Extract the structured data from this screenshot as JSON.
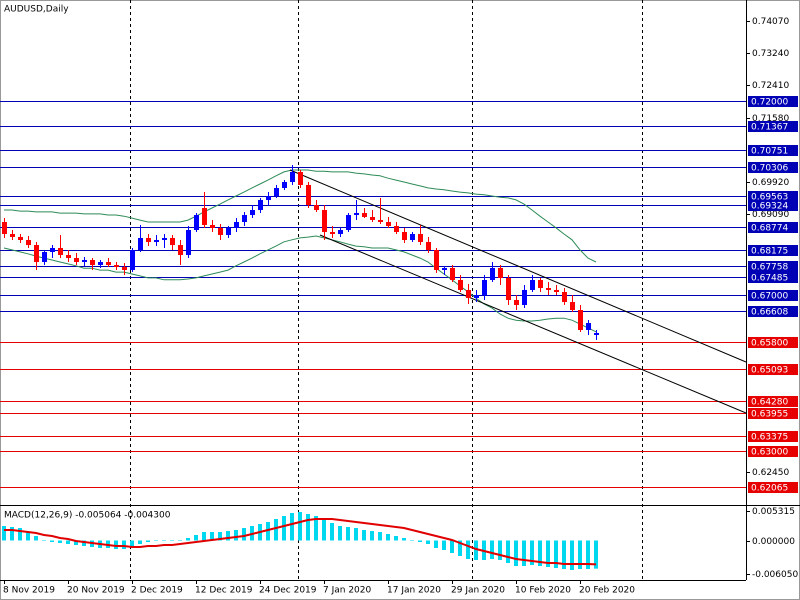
{
  "chart_data": {
    "type": "candlestick",
    "title": "AUDUSD,Daily",
    "categories": [
      "8 Nov 2019",
      null,
      null,
      null,
      null,
      null,
      null,
      null,
      "20 Nov 2019",
      null,
      null,
      null,
      null,
      null,
      null,
      null,
      "2 Dec 2019",
      null,
      null,
      null,
      null,
      null,
      null,
      null,
      "12 Dec 2019",
      null,
      null,
      null,
      null,
      null,
      null,
      null,
      "24 Dec 2019",
      null,
      null,
      null,
      null,
      null,
      null,
      null,
      "7 Jan 2020",
      null,
      null,
      null,
      null,
      null,
      null,
      null,
      "17 Jan 2020",
      null,
      null,
      null,
      null,
      null,
      null,
      null,
      "29 Jan 2020",
      null,
      null,
      null,
      null,
      null,
      null,
      null,
      "10 Feb 2020",
      null,
      null,
      null,
      null,
      null,
      null,
      null,
      "20 Feb 2020",
      null,
      null
    ],
    "open": [
      0.6889,
      0.68581,
      0.68504,
      0.68426,
      0.68297,
      0.67859,
      0.68117,
      0.6822,
      0.6804,
      0.67962,
      0.67859,
      0.67911,
      0.67782,
      0.67859,
      0.67782,
      0.6773,
      0.67653,
      0.68168,
      0.68478,
      0.68375,
      0.68426,
      0.68478,
      0.68297,
      0.6804,
      0.68684,
      0.69251,
      0.68813,
      0.68735,
      0.68555,
      0.68735,
      0.6889,
      0.6907,
      0.69199,
      0.69457,
      0.6956,
      0.69766,
      0.69921,
      0.70179,
      0.69844,
      0.69328,
      0.69199,
      0.68632,
      0.68581,
      0.68684,
      0.6907,
      0.69122,
      0.69019,
      0.68942,
      0.6889,
      0.68787,
      0.68632,
      0.68426,
      0.68581,
      0.68375,
      0.68168,
      0.67653,
      0.67705,
      0.67395,
      0.67138,
      0.66932,
      0.67009,
      0.67395,
      0.67705,
      0.67447,
      0.6688,
      0.66751,
      0.67138,
      0.67395,
      0.67189,
      0.67138,
      0.67086,
      0.66828,
      0.66622,
      0.66107,
      0.65978
    ],
    "high": [
      0.68993,
      0.68684,
      0.68581,
      0.68529,
      0.68375,
      0.68168,
      0.68297,
      0.68555,
      0.68168,
      0.68091,
      0.67988,
      0.67962,
      0.67911,
      0.67962,
      0.67859,
      0.67833,
      0.6822,
      0.68813,
      0.68581,
      0.68555,
      0.68581,
      0.68555,
      0.68426,
      0.68787,
      0.69122,
      0.69663,
      0.68942,
      0.68839,
      0.68787,
      0.68993,
      0.69148,
      0.69328,
      0.69509,
      0.69663,
      0.69844,
      0.69972,
      0.70359,
      0.7023,
      0.69921,
      0.69457,
      0.69328,
      0.68787,
      0.68735,
      0.69122,
      0.69457,
      0.69251,
      0.69199,
      0.69509,
      0.69019,
      0.6889,
      0.68735,
      0.68632,
      0.68813,
      0.68504,
      0.6822,
      0.67756,
      0.67782,
      0.67524,
      0.67292,
      0.67138,
      0.67524,
      0.67859,
      0.67782,
      0.67524,
      0.67009,
      0.67267,
      0.67524,
      0.67447,
      0.67344,
      0.67267,
      0.67189,
      0.67009,
      0.66751,
      0.66365,
      0.66107
    ],
    "low": [
      0.68478,
      0.68426,
      0.68349,
      0.6822,
      0.67653,
      0.67782,
      0.67962,
      0.67962,
      0.67859,
      0.67782,
      0.67756,
      0.67653,
      0.67705,
      0.6773,
      0.67653,
      0.67524,
      0.67602,
      0.68117,
      0.68272,
      0.68272,
      0.6822,
      0.68168,
      0.67782,
      0.67962,
      0.68632,
      0.68735,
      0.68632,
      0.68426,
      0.68478,
      0.68632,
      0.68787,
      0.68993,
      0.69122,
      0.69328,
      0.69509,
      0.69715,
      0.69844,
      0.69766,
      0.69251,
      0.69148,
      0.68426,
      0.68478,
      0.68504,
      0.68632,
      0.68942,
      0.68993,
      0.6889,
      0.68839,
      0.68735,
      0.68581,
      0.68349,
      0.68375,
      0.68297,
      0.68091,
      0.67576,
      0.67524,
      0.67344,
      0.67086,
      0.66777,
      0.66828,
      0.6688,
      0.67344,
      0.67267,
      0.66751,
      0.66622,
      0.66674,
      0.67086,
      0.67086,
      0.67009,
      0.67009,
      0.66751,
      0.66571,
      0.66055,
      0.65978,
      0.65849
    ],
    "close": [
      0.68581,
      0.68504,
      0.68426,
      0.68297,
      0.67859,
      0.68117,
      0.6822,
      0.6804,
      0.67962,
      0.67859,
      0.67911,
      0.67782,
      0.67859,
      0.67782,
      0.6773,
      0.67653,
      0.68168,
      0.68478,
      0.68375,
      0.68426,
      0.68478,
      0.68297,
      0.6804,
      0.68684,
      0.6907,
      0.68813,
      0.68735,
      0.68555,
      0.68735,
      0.6889,
      0.6907,
      0.69199,
      0.69457,
      0.6956,
      0.69766,
      0.69921,
      0.70179,
      0.69844,
      0.69328,
      0.69199,
      0.68632,
      0.68581,
      0.68684,
      0.6907,
      0.69122,
      0.69019,
      0.68942,
      0.6889,
      0.68787,
      0.68632,
      0.68426,
      0.68581,
      0.68375,
      0.68168,
      0.67653,
      0.67705,
      0.67395,
      0.67138,
      0.66932,
      0.67009,
      0.67395,
      0.67705,
      0.67447,
      0.6688,
      0.66751,
      0.67138,
      0.67395,
      0.67189,
      0.67138,
      0.67086,
      0.66828,
      0.66622,
      0.66107,
      0.66287,
      0.6603
    ],
    "up_color": "#0000ff",
    "down_color": "#ff0000",
    "ylim": [
      0.61597,
      0.74611
    ],
    "yticks": [
      {
        "value": 0.7407,
        "label": "0.74070"
      },
      {
        "value": 0.7324,
        "label": "0.73240"
      },
      {
        "value": 0.7241,
        "label": "0.72410"
      },
      {
        "value": 0.7158,
        "label": "0.71580"
      },
      {
        "value": 0.6992,
        "label": "0.69920"
      },
      {
        "value": 0.6909,
        "label": "0.69090"
      },
      {
        "value": 0.6245,
        "label": "0.62450"
      }
    ],
    "bands": [
      {
        "color": "#2e8b57",
        "values": [
          0.692,
          0.692,
          0.6917,
          0.6917,
          0.6915,
          0.6915,
          0.6915,
          0.6912,
          0.6912,
          0.6912,
          0.691,
          0.691,
          0.691,
          0.6907,
          0.6907,
          0.6904,
          0.6899,
          0.6894,
          0.6889,
          0.6889,
          0.6889,
          0.6889,
          0.6889,
          0.6894,
          0.6904,
          0.6915,
          0.6925,
          0.6935,
          0.6946,
          0.6956,
          0.6966,
          0.6977,
          0.6987,
          0.6997,
          0.7008,
          0.7018,
          0.7023,
          0.7023,
          0.7023,
          0.702,
          0.702,
          0.7018,
          0.7018,
          0.7018,
          0.7015,
          0.7013,
          0.701,
          0.7008,
          0.7002,
          0.6997,
          0.6992,
          0.6987,
          0.6982,
          0.6977,
          0.6974,
          0.6972,
          0.6969,
          0.6966,
          0.6964,
          0.6961,
          0.6959,
          0.6956,
          0.6953,
          0.6951,
          0.6946,
          0.6935,
          0.692,
          0.6904,
          0.6889,
          0.6874,
          0.6858,
          0.6843,
          0.6817,
          0.6796,
          0.6786
        ]
      },
      {
        "color": "#2e8b57",
        "values": [
          0.6822,
          0.6817,
          0.6812,
          0.6807,
          0.6801,
          0.6796,
          0.6791,
          0.6786,
          0.6781,
          0.6776,
          0.677,
          0.677,
          0.6765,
          0.6765,
          0.676,
          0.676,
          0.6755,
          0.675,
          0.6745,
          0.6745,
          0.674,
          0.674,
          0.674,
          0.6742,
          0.6745,
          0.675,
          0.6755,
          0.676,
          0.6765,
          0.6776,
          0.6786,
          0.6796,
          0.6807,
          0.6817,
          0.6827,
          0.6838,
          0.6843,
          0.6848,
          0.685,
          0.6853,
          0.6848,
          0.6843,
          0.6838,
          0.6832,
          0.6827,
          0.6825,
          0.6822,
          0.6822,
          0.6822,
          0.6817,
          0.6812,
          0.6804,
          0.6796,
          0.6786,
          0.677,
          0.6755,
          0.674,
          0.6724,
          0.6709,
          0.6693,
          0.6678,
          0.6667,
          0.6652,
          0.6641,
          0.6636,
          0.6634,
          0.6634,
          0.6636,
          0.6639,
          0.6641,
          0.6641,
          0.6636,
          0.6626,
          0.6616,
          0.6606
        ]
      }
    ],
    "channels": [
      {
        "color": "#000000",
        "x": [
          35.75,
          92.75
        ],
        "values": [
          0.7023,
          0.65282
        ]
      },
      {
        "color": "#000000",
        "x": [
          39.5,
          92.75
        ],
        "values": [
          0.68555,
          0.63968
        ]
      }
    ],
    "resistance": {
      "color": "#0000b4",
      "levels": [
        {
          "value": 0.72,
          "label": "0.72000"
        },
        {
          "value": 0.71367,
          "label": "0.71367"
        },
        {
          "value": 0.70751,
          "label": "0.70751"
        },
        {
          "value": 0.70306,
          "label": "0.70306"
        },
        {
          "value": 0.69563,
          "label": "0.69563"
        },
        {
          "value": 0.69324,
          "label": "0.69324"
        },
        {
          "value": 0.68774,
          "label": "0.68774"
        },
        {
          "value": 0.68175,
          "label": "0.68175"
        },
        {
          "value": 0.67758,
          "label": "0.67758"
        },
        {
          "value": 0.67485,
          "label": "0.67485"
        },
        {
          "value": 0.67,
          "label": "0.67000"
        },
        {
          "value": 0.66608,
          "label": "0.66608"
        }
      ]
    },
    "support": {
      "color": "#e60000",
      "levels": [
        {
          "value": 0.658,
          "label": "0.65800"
        },
        {
          "value": 0.65093,
          "label": "0.65093"
        },
        {
          "value": 0.6428,
          "label": "0.64280"
        },
        {
          "value": 0.63955,
          "label": "0.63955"
        },
        {
          "value": 0.63375,
          "label": "0.63375"
        },
        {
          "value": 0.63,
          "label": "0.63000"
        },
        {
          "value": 0.62065,
          "label": "0.62065"
        }
      ]
    },
    "indicator": {
      "type": "bar",
      "title": "MACD(12,26,9) -0.005064 -0.004300",
      "ylim": [
        -0.00711,
        0.00621
      ],
      "yticks": [
        0.005315,
        {
          "value": 0,
          "label": "0.000000"
        },
        {
          "value": -0.00605,
          "label": "-0.006050"
        }
      ],
      "histogram": {
        "color": "#00d8f0",
        "values": [
          0.00261,
          0.00243,
          0.00225,
          0.00153,
          0.00081,
          9e-05,
          -0.00027,
          -0.00045,
          -0.00063,
          -0.00081,
          -0.00099,
          -0.00117,
          -0.00135,
          -0.00135,
          -0.00153,
          -0.00153,
          -0.00117,
          -0.00063,
          -0.00027,
          -9e-05,
          9e-05,
          9e-05,
          -9e-05,
          0.00045,
          0.00099,
          0.00153,
          0.00153,
          0.00153,
          0.00171,
          0.00189,
          0.00225,
          0.00261,
          0.00297,
          0.00333,
          0.00387,
          0.00441,
          0.00495,
          0.00513,
          0.00477,
          0.00441,
          0.00369,
          0.00315,
          0.00261,
          0.00243,
          0.00225,
          0.00189,
          0.00171,
          0.00153,
          0.00117,
          0.00081,
          0.00045,
          9e-05,
          -0.00027,
          -0.00063,
          -0.00135,
          -0.00171,
          -0.00225,
          -0.00279,
          -0.00333,
          -0.00351,
          -0.00351,
          -0.00333,
          -0.00351,
          -0.00405,
          -0.00459,
          -0.00459,
          -0.00441,
          -0.00459,
          -0.00477,
          -0.00495,
          -0.00513,
          -0.00531,
          -0.00513,
          -0.00513,
          -0.005064
        ]
      },
      "signal": {
        "color": "#e00000",
        "values": [
          0.00189,
          0.00189,
          0.00171,
          0.00153,
          0.00135,
          0.00099,
          0.00081,
          0.00045,
          0.00027,
          -9e-05,
          -0.00027,
          -0.00045,
          -0.00063,
          -0.00081,
          -0.00099,
          -0.00099,
          -0.00117,
          -0.00117,
          -0.00099,
          -0.00099,
          -0.00081,
          -0.00081,
          -0.00063,
          -0.00045,
          -0.00027,
          -9e-05,
          9e-05,
          0.00027,
          0.00045,
          0.00063,
          0.00081,
          0.00117,
          0.00153,
          0.00189,
          0.00225,
          0.00261,
          0.00297,
          0.00333,
          0.00369,
          0.00387,
          0.00387,
          0.00387,
          0.00369,
          0.00351,
          0.00333,
          0.00315,
          0.00297,
          0.00279,
          0.00261,
          0.00243,
          0.00225,
          0.00189,
          0.00153,
          0.00117,
          0.00081,
          0.00045,
          9e-05,
          -0.00045,
          -0.00099,
          -0.00153,
          -0.00189,
          -0.00225,
          -0.00261,
          -0.00297,
          -0.00333,
          -0.00351,
          -0.00369,
          -0.00387,
          -0.00405,
          -0.00405,
          -0.00423,
          -0.00423,
          -0.00423,
          -0.00423,
          -0.0043
        ]
      }
    }
  }
}
